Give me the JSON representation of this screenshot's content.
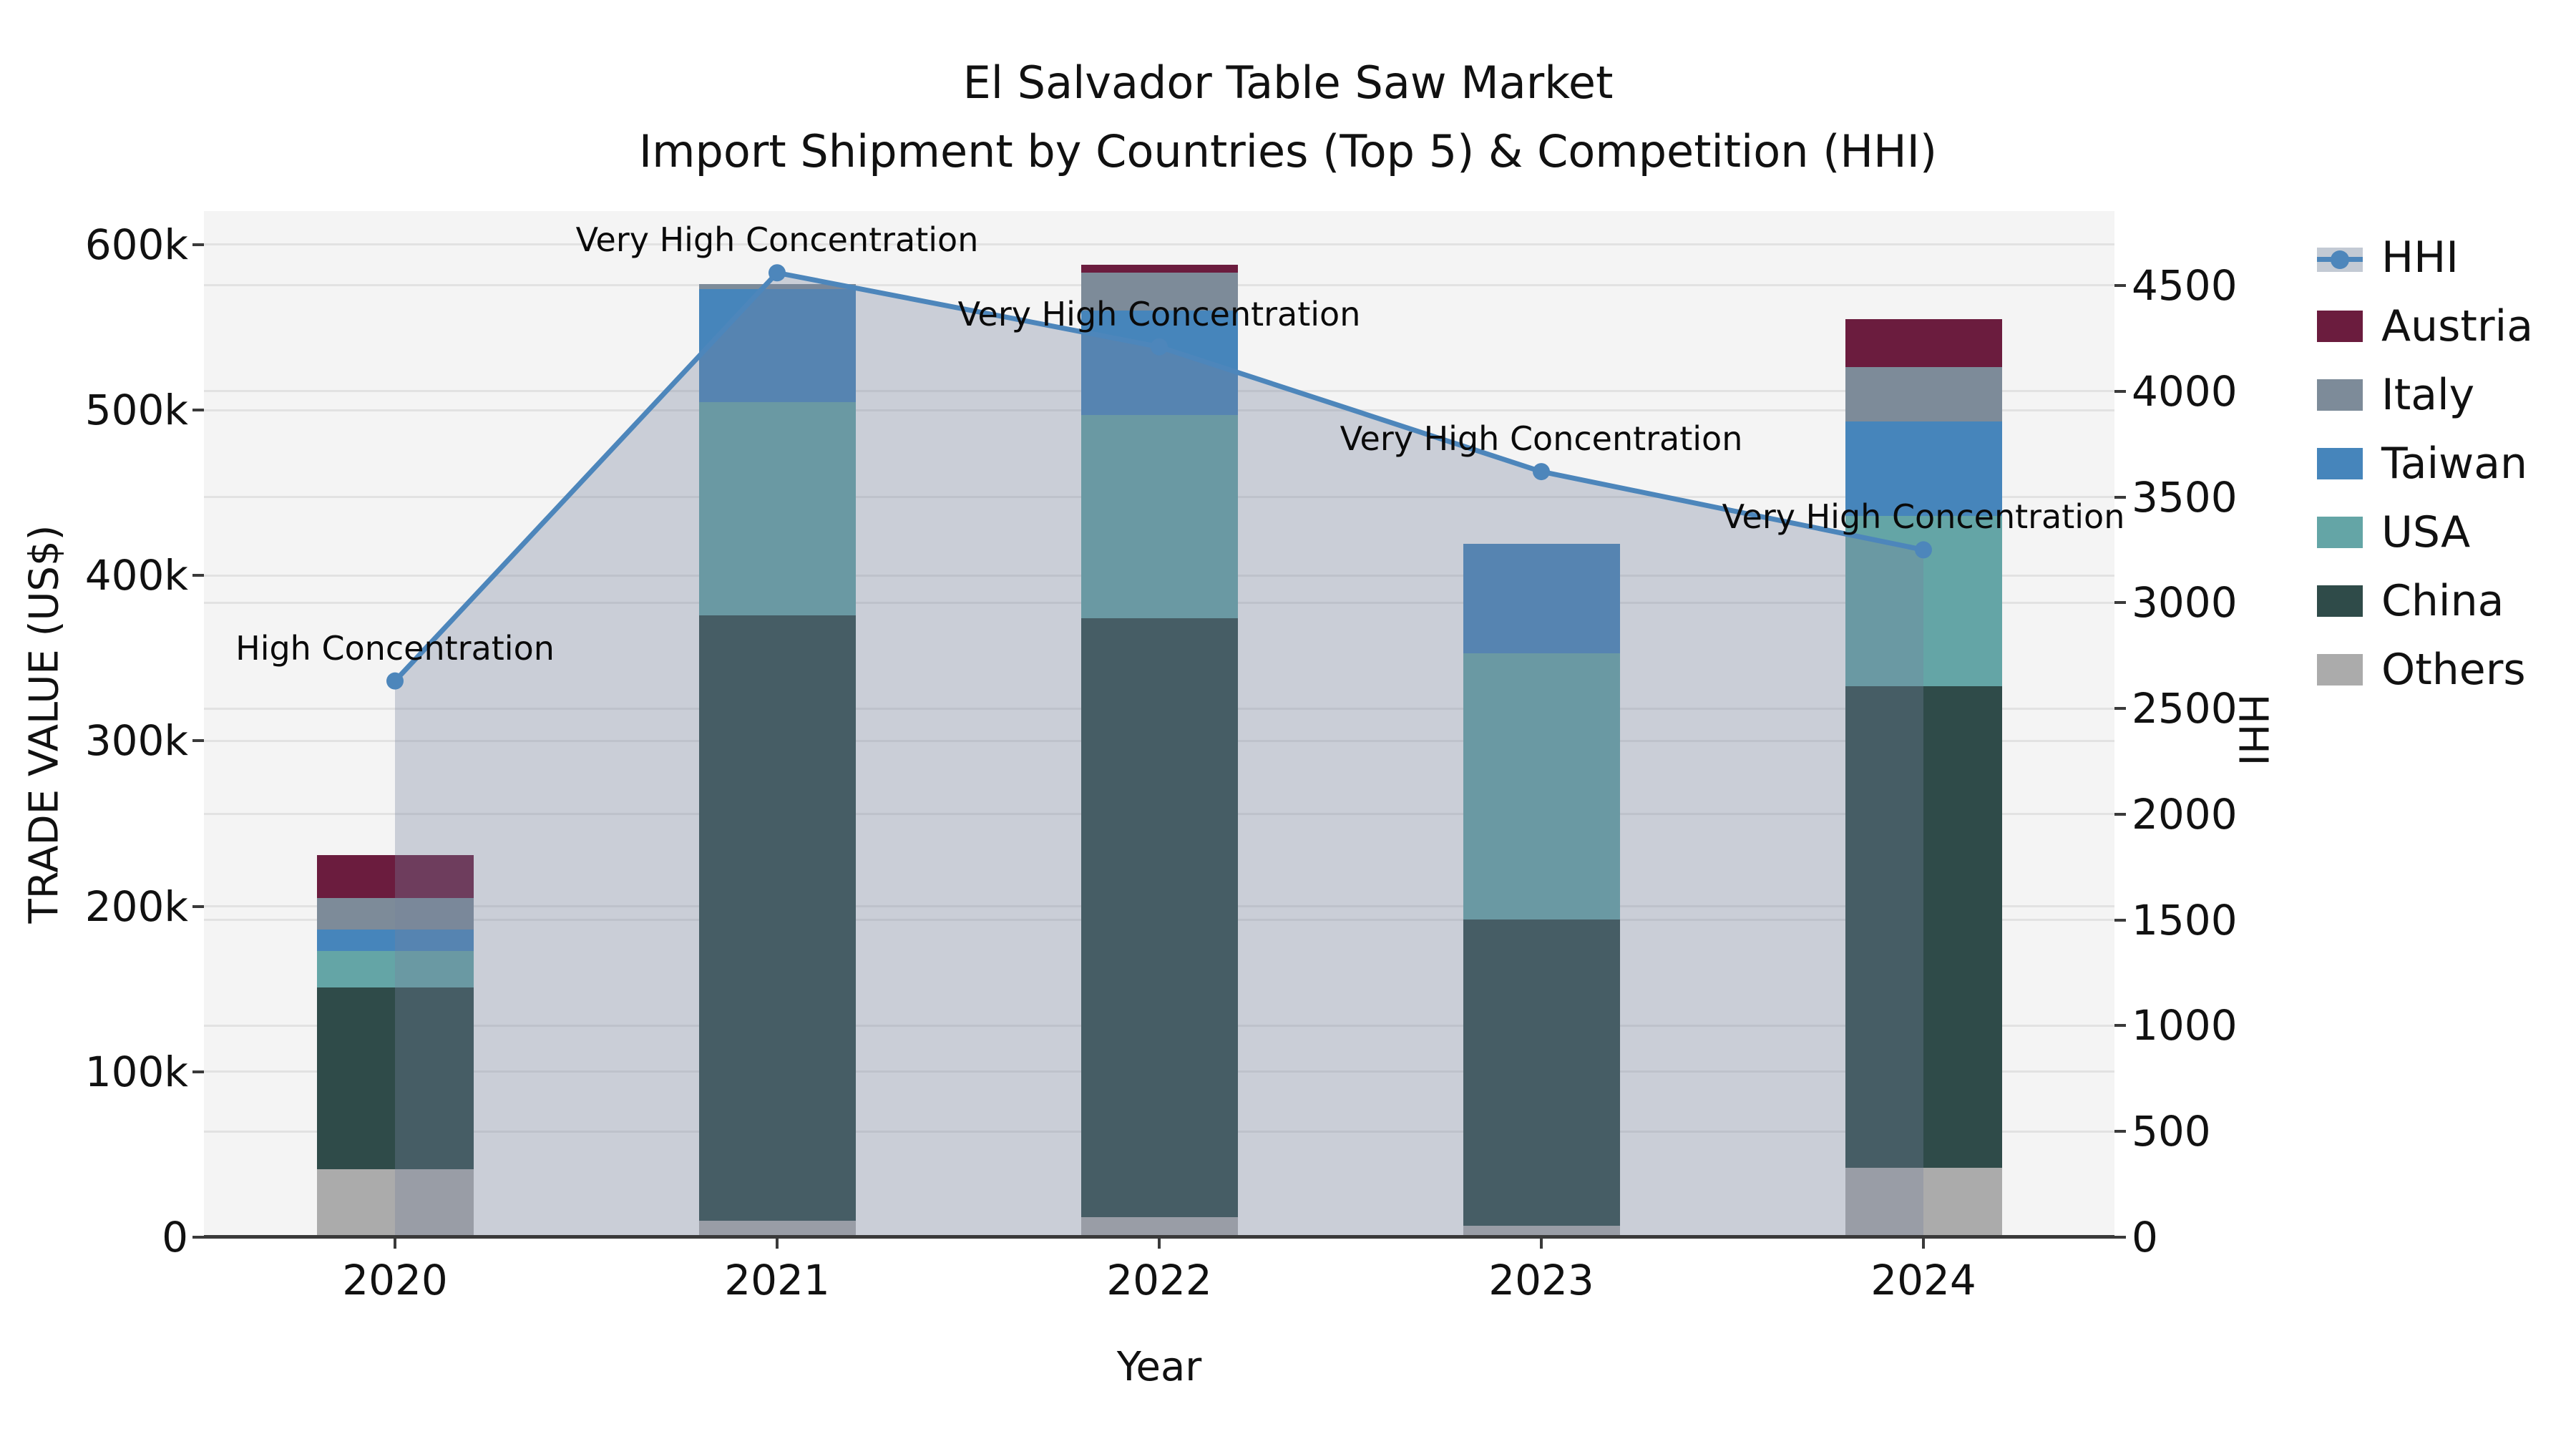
{
  "title": {
    "line1": "El Salvador Table Saw Market",
    "line2": "Import Shipment by Countries (Top 5) & Competition (HHI)"
  },
  "axes": {
    "x_label": "Year",
    "y_left_label": "TRADE VALUE (US$)",
    "y_right_label": "HHI",
    "left_ticks": [
      {
        "value": 0,
        "label": "0"
      },
      {
        "value": 100,
        "label": "100k"
      },
      {
        "value": 200,
        "label": "200k"
      },
      {
        "value": 300,
        "label": "300k"
      },
      {
        "value": 400,
        "label": "400k"
      },
      {
        "value": 500,
        "label": "500k"
      },
      {
        "value": 600,
        "label": "600k"
      }
    ],
    "right_ticks": [
      {
        "value": 0,
        "label": "0"
      },
      {
        "value": 500,
        "label": "500"
      },
      {
        "value": 1000,
        "label": "1000"
      },
      {
        "value": 1500,
        "label": "1500"
      },
      {
        "value": 2000,
        "label": "2000"
      },
      {
        "value": 2500,
        "label": "2500"
      },
      {
        "value": 3000,
        "label": "3000"
      },
      {
        "value": 3500,
        "label": "3500"
      },
      {
        "value": 4000,
        "label": "4000"
      },
      {
        "value": 4500,
        "label": "4500"
      }
    ]
  },
  "chart_data": {
    "type": "bar",
    "subtype": "stacked-bar-with-line-overlay",
    "categories": [
      "2020",
      "2021",
      "2022",
      "2023",
      "2024"
    ],
    "units_left": "thousand US$",
    "ylim_left": [
      0,
      620.3
    ],
    "ylim_right": [
      0,
      4851.8
    ],
    "grid": true,
    "legend_position": "right-outside",
    "series": [
      {
        "name": "Others",
        "values": [
          41,
          10,
          12,
          7,
          42
        ],
        "color": "#ababab"
      },
      {
        "name": "China",
        "values": [
          110,
          366,
          362,
          185,
          291
        ],
        "color": "#2f4b49"
      },
      {
        "name": "USA",
        "values": [
          22,
          129,
          123,
          161,
          103
        ],
        "color": "#64a5a6"
      },
      {
        "name": "Taiwan",
        "values": [
          13,
          68,
          63,
          66,
          57
        ],
        "color": "#4685bb"
      },
      {
        "name": "Italy",
        "values": [
          19,
          3,
          23,
          0,
          33
        ],
        "color": "#7d8b99"
      },
      {
        "name": "Austria",
        "values": [
          26,
          0,
          5,
          0,
          29
        ],
        "color": "#6b1c3e"
      }
    ],
    "totals": [
      231,
      576,
      588,
      419,
      555
    ],
    "line": {
      "name": "HHI",
      "values": [
        2630,
        4560,
        4210,
        3620,
        3250
      ],
      "color": "#4d86bb",
      "fill_color": "rgba(118,130,158,0.33)"
    },
    "annotations": [
      "High Concentration",
      "Very High Concentration",
      "Very High Concentration",
      "Very High Concentration",
      "Very High Concentration"
    ]
  },
  "legend": {
    "items": [
      {
        "label": "HHI",
        "type": "line"
      },
      {
        "label": "Austria",
        "type": "patch",
        "color": "#6b1c3e"
      },
      {
        "label": "Italy",
        "type": "patch",
        "color": "#7d8b99"
      },
      {
        "label": "Taiwan",
        "type": "patch",
        "color": "#4685bb"
      },
      {
        "label": "USA",
        "type": "patch",
        "color": "#64a5a6"
      },
      {
        "label": "China",
        "type": "patch",
        "color": "#2f4b49"
      },
      {
        "label": "Others",
        "type": "patch",
        "color": "#ababab"
      }
    ]
  },
  "colors": {
    "plot_bg": "#f4f4f4",
    "grid": "#e2e2e2",
    "axis": "#3a3a3a",
    "text": "#111111"
  }
}
